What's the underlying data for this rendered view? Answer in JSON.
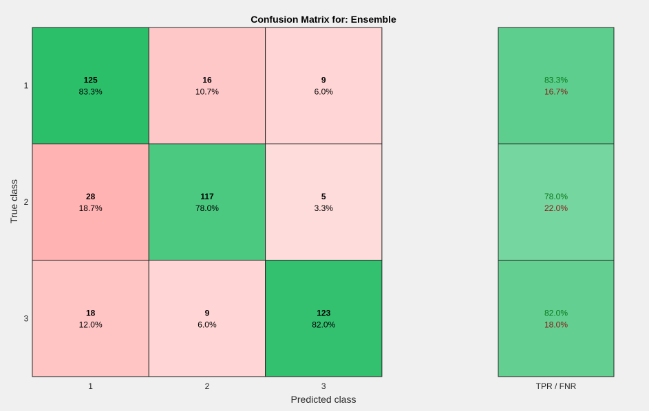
{
  "chart_data": {
    "type": "heatmap",
    "title": "Confusion Matrix for: Ensemble",
    "xlabel": "Predicted class",
    "ylabel": "True class",
    "row_labels": [
      "1",
      "2",
      "3"
    ],
    "col_labels": [
      "1",
      "2",
      "3"
    ],
    "counts": [
      [
        125,
        16,
        9
      ],
      [
        28,
        117,
        5
      ],
      [
        18,
        9,
        123
      ]
    ],
    "percents": [
      [
        "83.3%",
        "10.7%",
        "6.0%"
      ],
      [
        "18.7%",
        "78.0%",
        "3.3%"
      ],
      [
        "12.0%",
        "6.0%",
        "82.0%"
      ]
    ],
    "summary": {
      "label": "TPR / FNR",
      "tpr": [
        "83.3%",
        "78.0%",
        "82.0%"
      ],
      "fnr": [
        "16.7%",
        "22.0%",
        "18.0%"
      ]
    },
    "colors": {
      "correct": "#2bbf6a",
      "incorrect": "#ffb3b3",
      "tpr_text": "#0b7a1e",
      "fnr_text": "#8a1a1a",
      "background": "#f0f0f0",
      "grid": "#262626"
    }
  }
}
